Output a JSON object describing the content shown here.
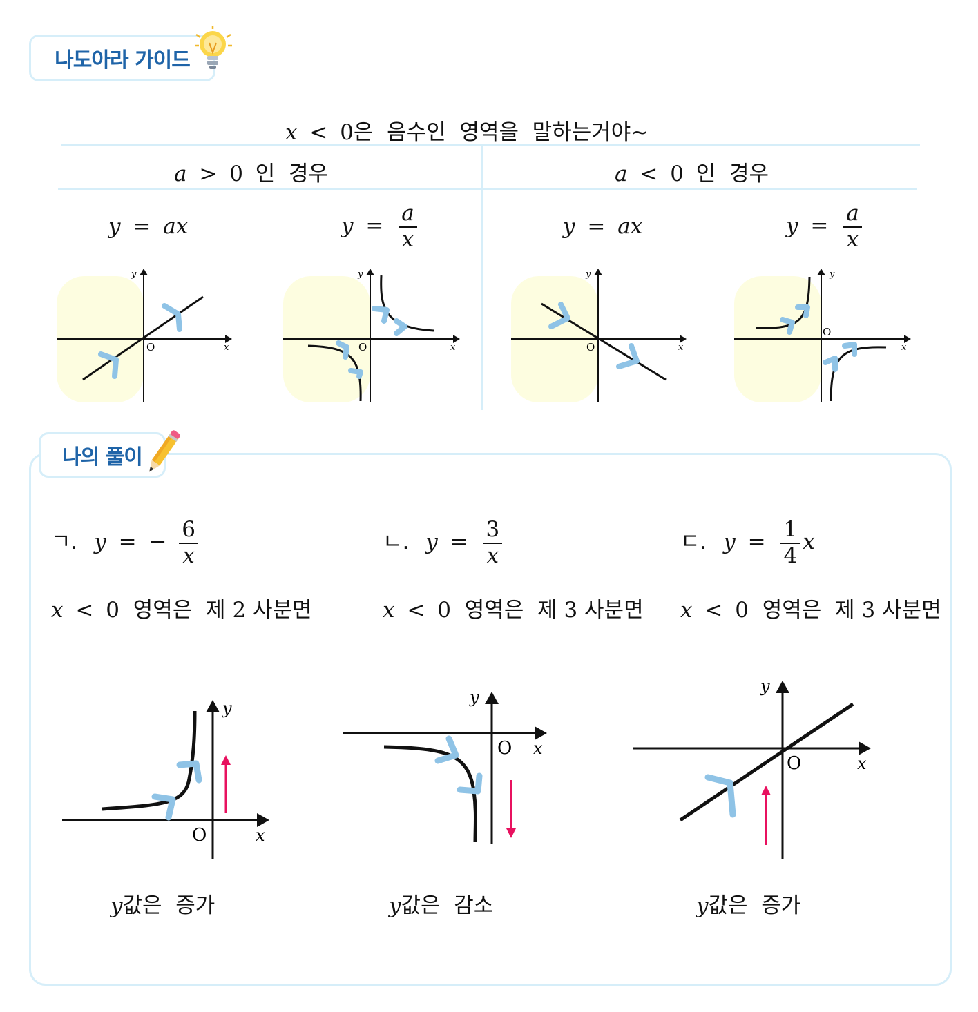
{
  "guide": {
    "tab_label": "나도아라 가이드",
    "intro_var": "x",
    "intro_op": "<",
    "intro_zero": "0",
    "intro_text": "은  음수인  영역을  말하는거야~",
    "left_header": {
      "var": "a",
      "op": ">",
      "zero": "0",
      "text": "인  경우"
    },
    "right_header": {
      "var": "a",
      "op": "<",
      "zero": "0",
      "text": "인  경우"
    },
    "formulas": {
      "linear_lhs": "y",
      "linear_rhs": "ax",
      "inverse_lhs": "y",
      "inverse_num": "a",
      "inverse_den": "x",
      "eq": "="
    },
    "axis": {
      "x": "x",
      "y": "y",
      "origin": "O"
    }
  },
  "solution": {
    "tab_label": "나의 풀이",
    "items": [
      {
        "marker": "ㄱ.",
        "lhs": "y",
        "eq": "=",
        "sign": "−",
        "num": "6",
        "den": "x",
        "tail": "",
        "cond_var": "x",
        "cond_op": "<",
        "cond_zero": "0",
        "cond_text": "영역은  제",
        "quadrant": "2",
        "quad_word": "사분면",
        "result_var": "y",
        "result_text": "값은  증가"
      },
      {
        "marker": "ㄴ.",
        "lhs": "y",
        "eq": "=",
        "sign": "",
        "num": "3",
        "den": "x",
        "tail": "",
        "cond_var": "x",
        "cond_op": "<",
        "cond_zero": "0",
        "cond_text": "영역은  제",
        "quadrant": "3",
        "quad_word": "사분면",
        "result_var": "y",
        "result_text": "값은  감소"
      },
      {
        "marker": "ㄷ.",
        "lhs": "y",
        "eq": "=",
        "sign": "",
        "num": "1",
        "den": "4",
        "tail": "x",
        "cond_var": "x",
        "cond_op": "<",
        "cond_zero": "0",
        "cond_text": "영역은  제",
        "quadrant": "3",
        "quad_word": "사분면",
        "result_var": "y",
        "result_text": "값은  증가"
      }
    ]
  },
  "colors": {
    "tab_text": "#1f64a8",
    "border": "#d6eef9",
    "highlight": "#fdfde0",
    "chevron": "#8fc3e6",
    "arrow_red": "#e8115f"
  }
}
